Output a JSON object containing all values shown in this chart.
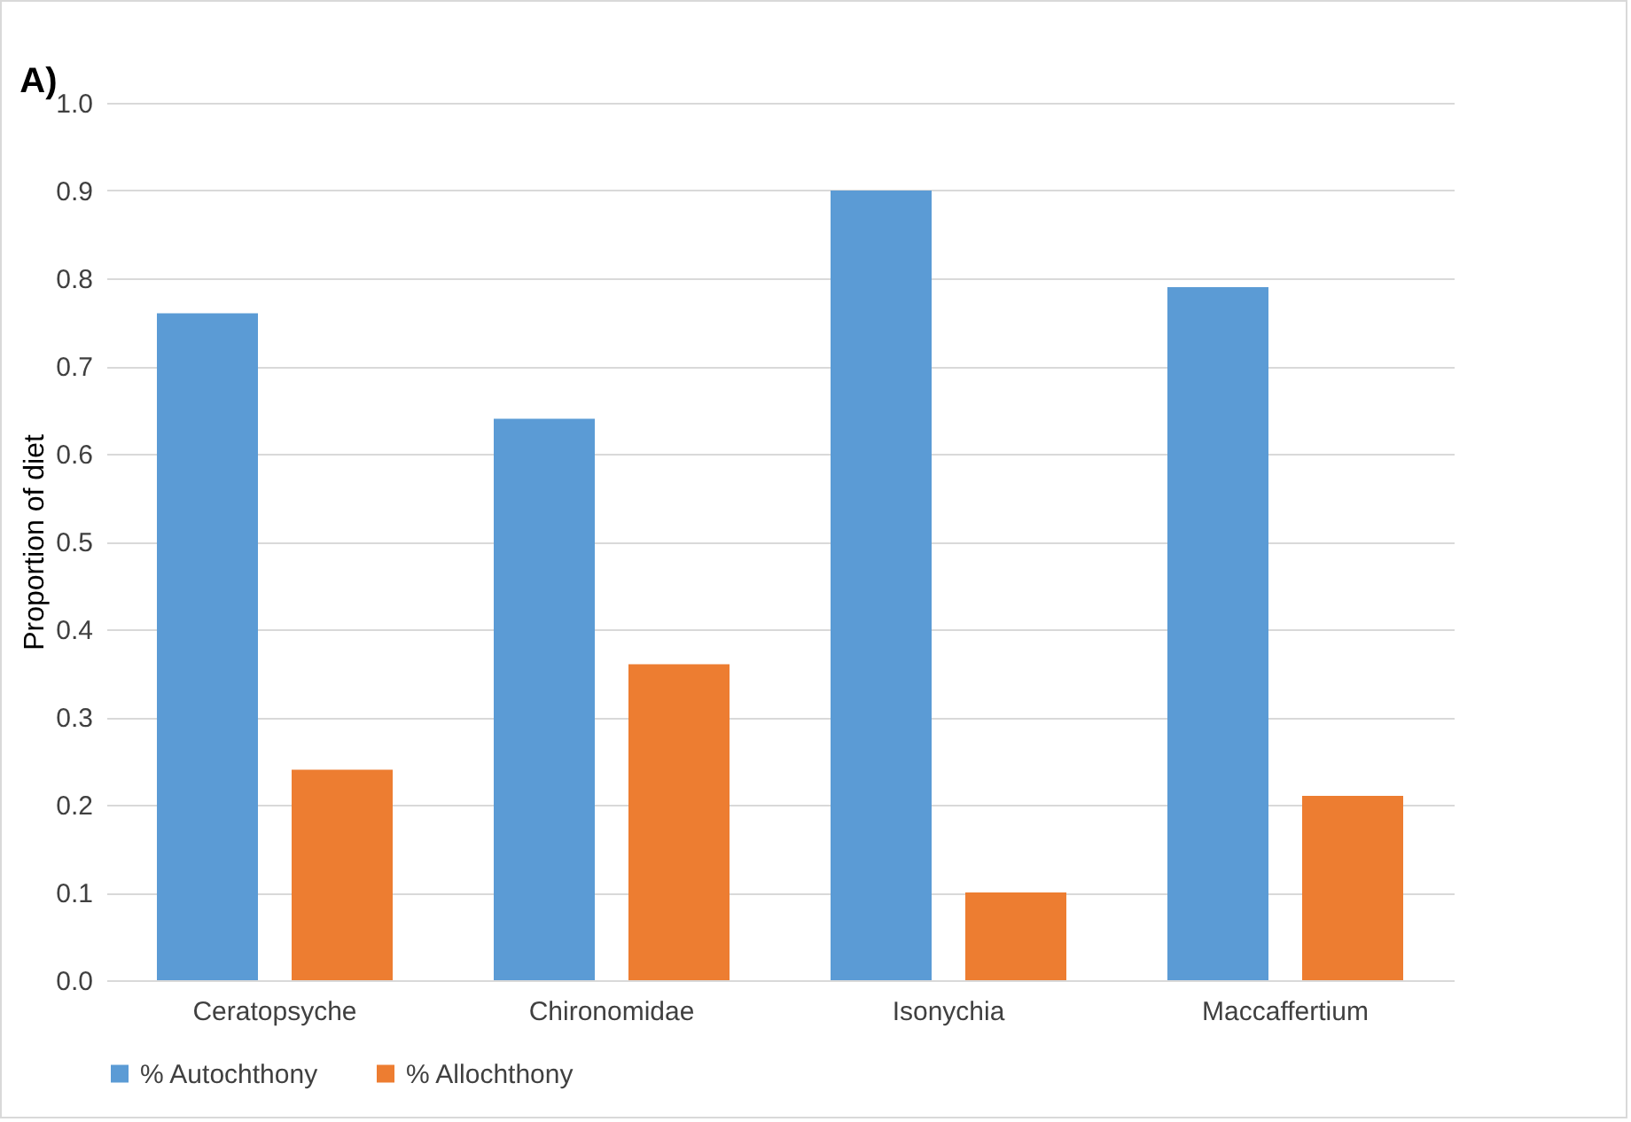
{
  "chart_data": {
    "type": "bar",
    "annotations": [
      "A)"
    ],
    "ylabel": "Proportion of diet",
    "categories": [
      "Ceratopsyche",
      "Chironomidae",
      "Isonychia",
      "Maccaffertium"
    ],
    "series": [
      {
        "name": "% Autochthony",
        "color": "#5b9bd5",
        "values": [
          0.76,
          0.64,
          0.9,
          0.79
        ]
      },
      {
        "name": "% Allochthony",
        "color": "#ed7d31",
        "values": [
          0.24,
          0.36,
          0.1,
          0.21
        ]
      }
    ],
    "ylim": [
      0,
      1
    ],
    "yticks": [
      {
        "value": 0,
        "label": "0.0"
      },
      {
        "value": 0.1,
        "label": "0.1"
      },
      {
        "value": 0.2,
        "label": "0.2"
      },
      {
        "value": 0.3,
        "label": "0.3"
      },
      {
        "value": 0.4,
        "label": "0.4"
      },
      {
        "value": 0.5,
        "label": "0.5"
      },
      {
        "value": 0.6,
        "label": "0.6"
      },
      {
        "value": 0.7,
        "label": "0.7"
      },
      {
        "value": 0.8,
        "label": "0.8"
      },
      {
        "value": 0.9,
        "label": "0.9"
      },
      {
        "value": 1,
        "label": "1.0"
      }
    ],
    "grid": "y",
    "legend": "bottom"
  }
}
